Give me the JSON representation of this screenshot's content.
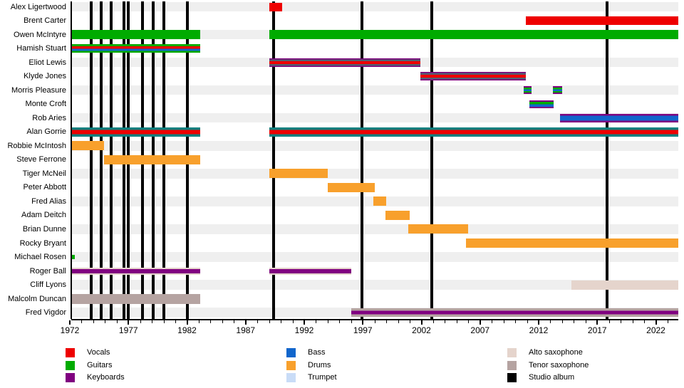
{
  "colors": {
    "red": "#EE0000",
    "green": "#00AB00",
    "purple": "#800080",
    "blue": "#1166CC",
    "orange": "#F8A02C",
    "trumpet": "#C9DCF7",
    "alto": "#E5D4CC",
    "tenor": "#B5A3A1",
    "teal": "#0A7F7E",
    "slate": "#555E70",
    "black": "#000000",
    "row_shade": "#EFEFEF"
  },
  "chart_data": {
    "type": "bar",
    "subtype": "gantt-timeline-band-members",
    "title": "",
    "xlabel": "",
    "ylabel": "",
    "axis": {
      "start_year": 1972,
      "end_year": 2024,
      "major_tick_years": [
        1972,
        1977,
        1982,
        1987,
        1992,
        1997,
        2002,
        2007,
        2012,
        2017,
        2022
      ],
      "minor_tick_step": 1,
      "grid": "off",
      "legend_position": "bottom"
    },
    "albums": {
      "label": "Studio album",
      "years": [
        1973.8,
        1974.7,
        1975.5,
        1976.6,
        1977.0,
        1978.2,
        1979.1,
        1980.0,
        1982.0,
        1989.4,
        1996.9,
        2002.9,
        2017.85
      ]
    },
    "patterns": {
      "vocals": [
        [
          "red",
          12
        ]
      ],
      "guitars": [
        [
          "green",
          13
        ]
      ],
      "guitars_tiny": [
        [
          "green",
          6
        ]
      ],
      "vocals_guitars_bass": [
        [
          "green",
          3
        ],
        [
          "red",
          3.5
        ],
        [
          "blue",
          3
        ],
        [
          "green",
          2.5
        ]
      ],
      "vocals_keys_bass": [
        [
          "purple",
          1.5
        ],
        [
          "slate",
          2.5
        ],
        [
          "red",
          4
        ],
        [
          "slate",
          2.5
        ],
        [
          "purple",
          1.5
        ]
      ],
      "keys_guitars_bass": [
        [
          "purple",
          2
        ],
        [
          "green",
          2.5
        ],
        [
          "blue",
          2.5
        ],
        [
          "green",
          2
        ],
        [
          "purple",
          2
        ]
      ],
      "keys_guitars_bass2": [
        [
          "purple",
          2
        ],
        [
          "green",
          3.5
        ],
        [
          "blue",
          3.5
        ],
        [
          "purple",
          2
        ]
      ],
      "keys_bass": [
        [
          "purple",
          2.5
        ],
        [
          "blue",
          7
        ],
        [
          "purple",
          2.5
        ]
      ],
      "vocals_bass_teal": [
        [
          "teal",
          3.5
        ],
        [
          "red",
          6
        ],
        [
          "teal",
          3.5
        ]
      ],
      "drums": [
        [
          "orange",
          13
        ]
      ],
      "keys_alto": [
        [
          "alto",
          2
        ],
        [
          "purple",
          6
        ],
        [
          "alto",
          2
        ]
      ],
      "alto": [
        [
          "alto",
          13
        ]
      ],
      "tenor": [
        [
          "tenor",
          14
        ]
      ],
      "keys_tenor": [
        [
          "tenor",
          3.5
        ],
        [
          "purple",
          5
        ],
        [
          "tenor",
          3.5
        ]
      ]
    },
    "members": [
      {
        "name": "Alex Ligertwood",
        "segments": [
          {
            "from": 1989.0,
            "to": 1990.1,
            "pattern": "vocals"
          }
        ]
      },
      {
        "name": "Brent Carter",
        "segments": [
          {
            "from": 2010.9,
            "to": 2023.9,
            "pattern": "vocals"
          }
        ]
      },
      {
        "name": "Owen McIntyre",
        "segments": [
          {
            "from": 1972.2,
            "to": 1983.1,
            "pattern": "guitars"
          },
          {
            "from": 1989.0,
            "to": 2023.9,
            "pattern": "guitars"
          }
        ]
      },
      {
        "name": "Hamish Stuart",
        "segments": [
          {
            "from": 1972.2,
            "to": 1983.1,
            "pattern": "vocals_guitars_bass"
          }
        ]
      },
      {
        "name": "Eliot Lewis",
        "segments": [
          {
            "from": 1989.0,
            "to": 2001.9,
            "pattern": "vocals_keys_bass"
          }
        ]
      },
      {
        "name": "Klyde Jones",
        "segments": [
          {
            "from": 2001.9,
            "to": 2010.9,
            "pattern": "vocals_keys_bass"
          }
        ]
      },
      {
        "name": "Morris Pleasure",
        "segments": [
          {
            "from": 2010.7,
            "to": 2011.4,
            "pattern": "keys_guitars_bass"
          },
          {
            "from": 2013.2,
            "to": 2014.0,
            "pattern": "keys_guitars_bass"
          }
        ]
      },
      {
        "name": "Monte Croft",
        "segments": [
          {
            "from": 2011.2,
            "to": 2013.3,
            "pattern": "keys_guitars_bass2"
          }
        ]
      },
      {
        "name": "Rob Aries",
        "segments": [
          {
            "from": 2013.8,
            "to": 2023.9,
            "pattern": "keys_bass"
          }
        ]
      },
      {
        "name": "Alan Gorrie",
        "segments": [
          {
            "from": 1972.2,
            "to": 1983.1,
            "pattern": "vocals_bass_teal"
          },
          {
            "from": 1989.0,
            "to": 2023.9,
            "pattern": "vocals_bass_teal"
          }
        ]
      },
      {
        "name": "Robbie McIntosh",
        "segments": [
          {
            "from": 1972.2,
            "to": 1974.9,
            "pattern": "drums"
          }
        ]
      },
      {
        "name": "Steve Ferrone",
        "segments": [
          {
            "from": 1974.9,
            "to": 1983.1,
            "pattern": "drums"
          }
        ]
      },
      {
        "name": "Tiger McNeil",
        "segments": [
          {
            "from": 1989.0,
            "to": 1994.0,
            "pattern": "drums"
          }
        ]
      },
      {
        "name": "Peter Abbott",
        "segments": [
          {
            "from": 1994.0,
            "to": 1998.0,
            "pattern": "drums"
          }
        ]
      },
      {
        "name": "Fred Alias",
        "segments": [
          {
            "from": 1997.9,
            "to": 1999.0,
            "pattern": "drums"
          }
        ]
      },
      {
        "name": "Adam Deitch",
        "segments": [
          {
            "from": 1998.9,
            "to": 2001.0,
            "pattern": "drums"
          }
        ]
      },
      {
        "name": "Brian Dunne",
        "segments": [
          {
            "from": 2000.9,
            "to": 2006.0,
            "pattern": "drums"
          }
        ]
      },
      {
        "name": "Rocky Bryant",
        "segments": [
          {
            "from": 2005.8,
            "to": 2023.9,
            "pattern": "drums"
          }
        ]
      },
      {
        "name": "Michael Rosen",
        "segments": [
          {
            "from": 1972.2,
            "to": 1972.4,
            "pattern": "guitars_tiny"
          }
        ]
      },
      {
        "name": "Roger Ball",
        "segments": [
          {
            "from": 1972.2,
            "to": 1983.1,
            "pattern": "keys_alto"
          },
          {
            "from": 1989.0,
            "to": 1996.0,
            "pattern": "keys_alto"
          }
        ]
      },
      {
        "name": "Cliff Lyons",
        "segments": [
          {
            "from": 2014.8,
            "to": 2023.9,
            "pattern": "alto"
          }
        ]
      },
      {
        "name": "Malcolm Duncan",
        "segments": [
          {
            "from": 1972.2,
            "to": 1983.1,
            "pattern": "tenor"
          }
        ]
      },
      {
        "name": "Fred Vigdor",
        "segments": [
          {
            "from": 1996.0,
            "to": 2023.9,
            "pattern": "keys_tenor"
          }
        ]
      }
    ],
    "legend": {
      "columns": [
        {
          "items": [
            {
              "label": "Vocals",
              "color": "red"
            },
            {
              "label": "Guitars",
              "color": "green"
            },
            {
              "label": "Keyboards",
              "color": "purple"
            }
          ]
        },
        {
          "items": [
            {
              "label": "Bass",
              "color": "blue"
            },
            {
              "label": "Drums",
              "color": "orange"
            },
            {
              "label": "Trumpet",
              "color": "trumpet"
            }
          ]
        },
        {
          "items": [
            {
              "label": "Alto saxophone",
              "color": "alto"
            },
            {
              "label": "Tenor saxophone",
              "color": "tenor"
            },
            {
              "label": "Studio album",
              "color": "black"
            }
          ]
        }
      ]
    }
  }
}
